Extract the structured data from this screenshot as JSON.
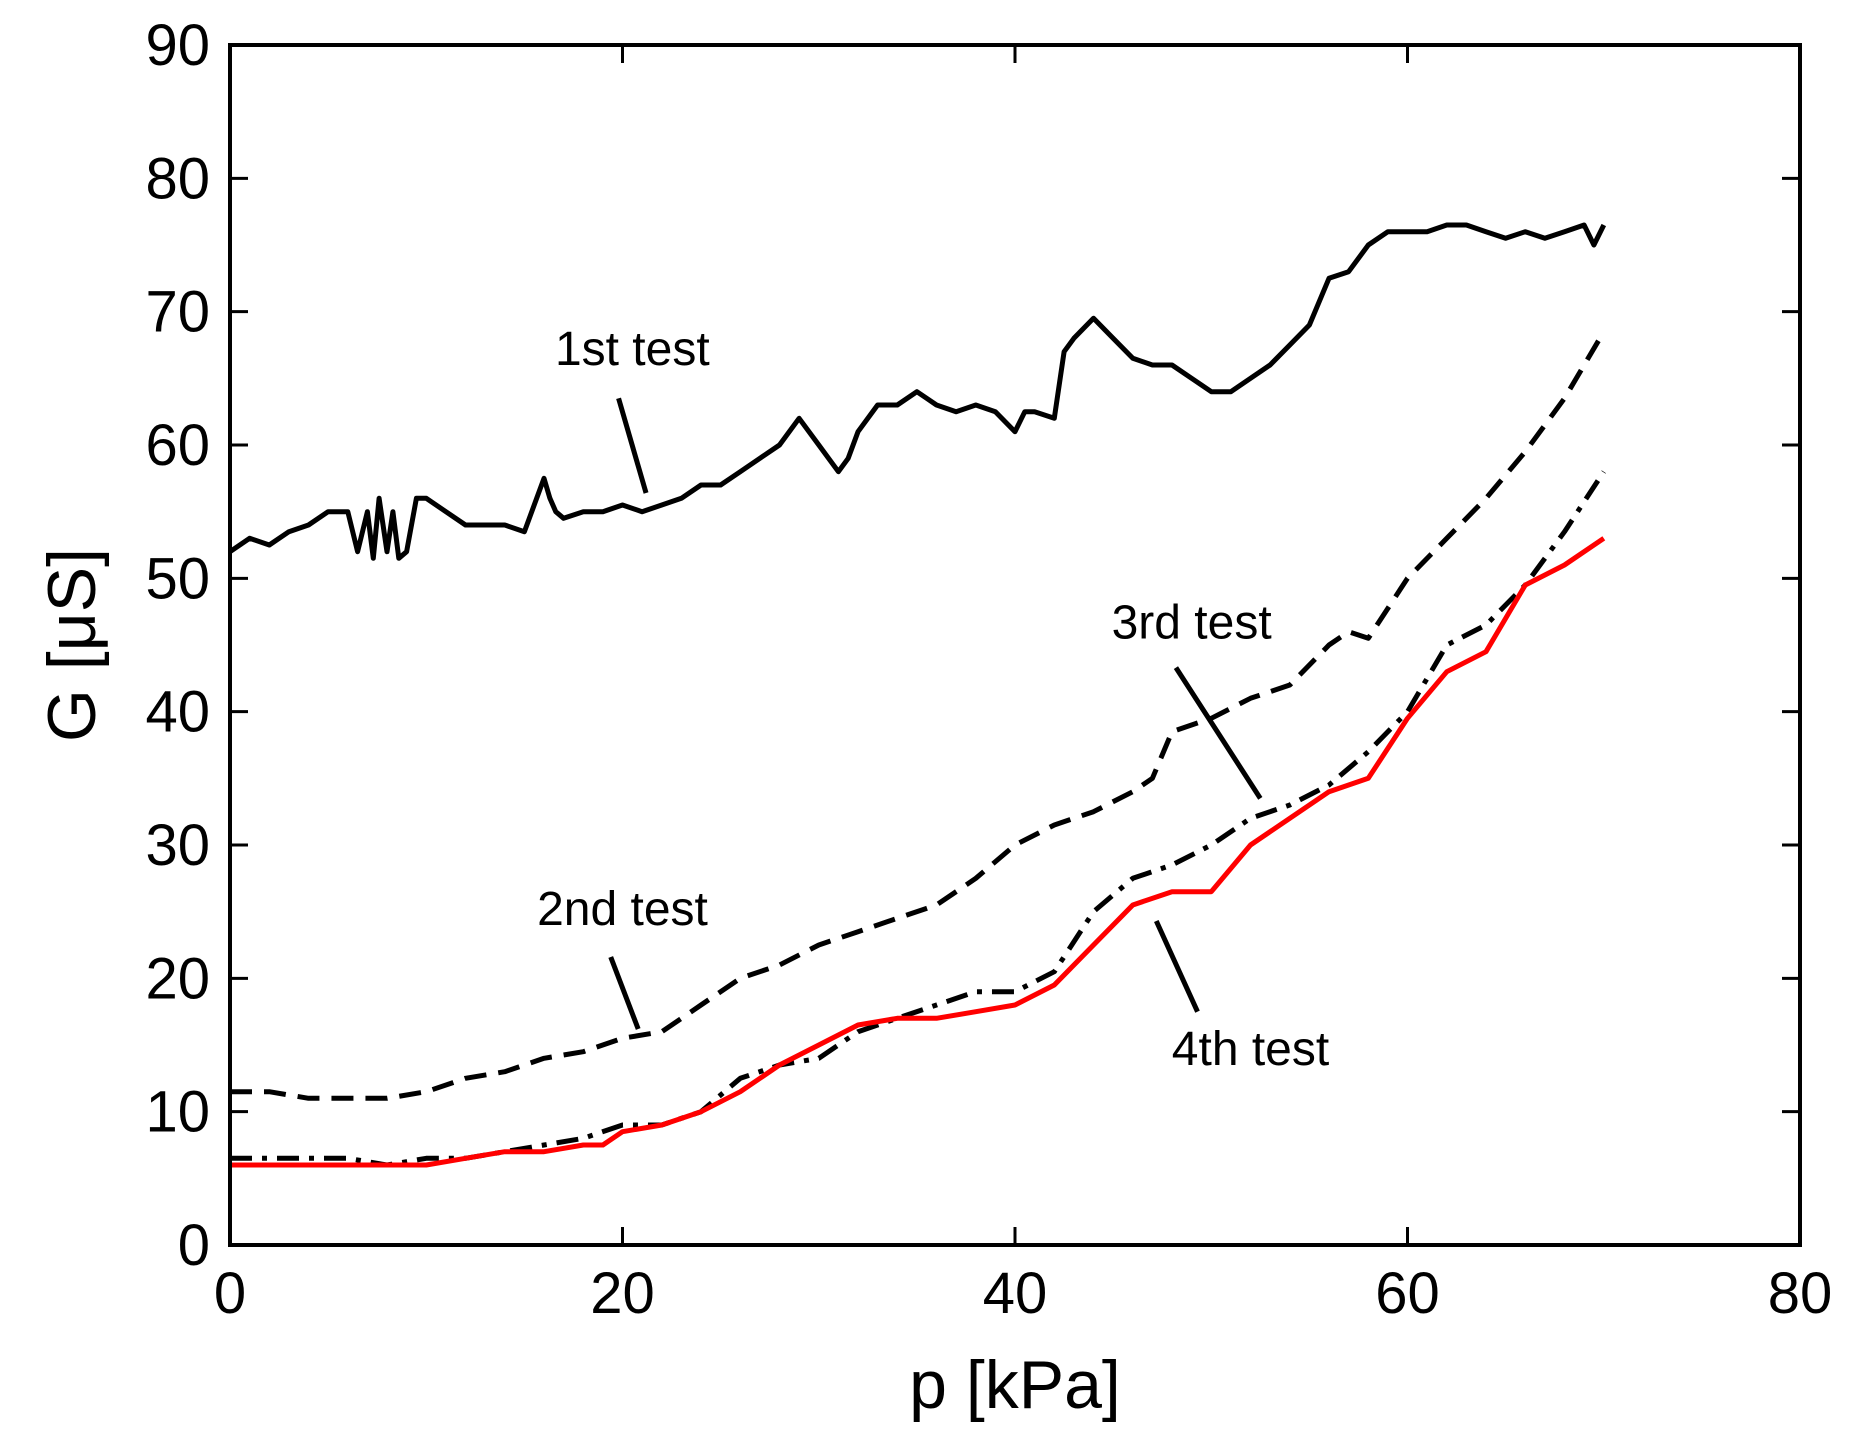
{
  "chart_data": {
    "type": "line",
    "title": "",
    "xlabel": "p [kPa]",
    "ylabel": "G [μS]",
    "xlim": [
      0,
      80
    ],
    "ylim": [
      0,
      90
    ],
    "xticks": [
      0,
      20,
      40,
      60,
      80
    ],
    "yticks": [
      0,
      10,
      20,
      30,
      40,
      50,
      60,
      70,
      80,
      90
    ],
    "grid": false,
    "legend": "none",
    "series": [
      {
        "name": "1st test",
        "color": "#000000",
        "style": "solid",
        "x": [
          0,
          1,
          2,
          3,
          4,
          5,
          6,
          6.5,
          7,
          7.3,
          7.6,
          8,
          8.3,
          8.6,
          9,
          9.5,
          10,
          11,
          12,
          13,
          14,
          15,
          16,
          16.3,
          16.6,
          17,
          18,
          19,
          20,
          21,
          22,
          23,
          24,
          25,
          26,
          27,
          28,
          29,
          30,
          31,
          31.5,
          32,
          33,
          34,
          35,
          35.5,
          36,
          37,
          38,
          39,
          40,
          40.5,
          41,
          42,
          42.5,
          43,
          44,
          45,
          46,
          47,
          48,
          49,
          50,
          51,
          52,
          53,
          54,
          55,
          56,
          57,
          58,
          59,
          60,
          61,
          62,
          63,
          64,
          65,
          66,
          67,
          68,
          69,
          69.5,
          70
        ],
        "y": [
          52,
          53,
          52.5,
          53.5,
          54,
          55,
          55,
          52,
          55,
          51.5,
          56,
          52,
          55,
          51.5,
          52,
          56,
          56,
          55,
          54,
          54,
          54,
          53.5,
          57.5,
          56,
          55,
          54.5,
          55,
          55,
          55.5,
          55,
          55.5,
          56,
          57,
          57,
          58,
          59,
          60,
          62,
          60,
          58,
          59,
          61,
          63,
          63,
          64,
          63.5,
          63,
          62.5,
          63,
          62.5,
          61,
          62.5,
          62.5,
          62,
          67,
          68,
          69.5,
          68,
          66.5,
          66,
          66,
          65,
          64,
          64,
          65,
          66,
          67.5,
          69,
          72.5,
          73,
          75,
          76,
          76,
          76,
          76.5,
          76.5,
          76,
          75.5,
          76,
          75.5,
          76,
          76.5,
          75,
          76.5
        ]
      },
      {
        "name": "2nd test",
        "color": "#000000",
        "style": "dashed",
        "x": [
          0,
          2,
          4,
          6,
          8,
          10,
          12,
          14,
          16,
          18,
          20,
          22,
          24,
          26,
          28,
          30,
          32,
          34,
          36,
          38,
          40,
          42,
          44,
          46,
          47,
          48,
          50,
          52,
          54,
          56,
          57,
          58,
          60,
          62,
          64,
          66,
          68,
          70
        ],
        "y": [
          11.5,
          11.5,
          11,
          11,
          11,
          11.5,
          12.5,
          13,
          14,
          14.5,
          15.5,
          16,
          18,
          20,
          21,
          22.5,
          23.5,
          24.5,
          25.5,
          27.5,
          30,
          31.5,
          32.5,
          34,
          35,
          38.5,
          39.5,
          41,
          42,
          45,
          46,
          45.5,
          50,
          53,
          56,
          59.5,
          63.5,
          68.5
        ]
      },
      {
        "name": "3rd test",
        "color": "#000000",
        "style": "dashdot",
        "x": [
          0,
          2,
          4,
          6,
          8,
          10,
          12,
          14,
          16,
          18,
          20,
          22,
          24,
          26,
          28,
          30,
          32,
          34,
          36,
          38,
          40,
          42,
          44,
          46,
          48,
          50,
          52,
          54,
          56,
          58,
          60,
          62,
          64,
          66,
          68,
          70
        ],
        "y": [
          6.5,
          6.5,
          6.5,
          6.5,
          6,
          6.5,
          6.5,
          7,
          7.5,
          8,
          9,
          9,
          10,
          12.5,
          13.5,
          14,
          16,
          17,
          18,
          19,
          19,
          20.5,
          25,
          27.5,
          28.5,
          30,
          32,
          33,
          34.5,
          37,
          40,
          45,
          46.5,
          49.5,
          53.5,
          58
        ]
      },
      {
        "name": "4th test",
        "color": "#ff0000",
        "style": "solid",
        "x": [
          0,
          2,
          4,
          6,
          8,
          10,
          12,
          14,
          16,
          18,
          19,
          20,
          22,
          24,
          26,
          28,
          30,
          32,
          34,
          36,
          38,
          40,
          42,
          44,
          46,
          48,
          50,
          52,
          54,
          56,
          58,
          60,
          62,
          64,
          66,
          68,
          70
        ],
        "y": [
          6,
          6,
          6,
          6,
          6,
          6,
          6.5,
          7,
          7,
          7.5,
          7.5,
          8.5,
          9,
          10,
          11.5,
          13.5,
          15,
          16.5,
          17,
          17,
          17.5,
          18,
          19.5,
          22.5,
          25.5,
          26.5,
          26.5,
          30,
          32,
          34,
          35,
          39.5,
          43,
          44.5,
          49.5,
          51,
          53
        ]
      }
    ],
    "annotations": [
      {
        "text": "1st test",
        "x": 20.5,
        "y": 66,
        "line": [
          [
            19.8,
            63.5
          ],
          [
            21.2,
            56.4
          ]
        ]
      },
      {
        "text": "2nd test",
        "x": 20,
        "y": 24,
        "line": [
          [
            19.4,
            21.6
          ],
          [
            20.8,
            16.2
          ]
        ]
      },
      {
        "text": "3rd test",
        "x": 49,
        "y": 45.5,
        "line": [
          [
            48.2,
            43.3
          ],
          [
            52.5,
            33.5
          ]
        ]
      },
      {
        "text": "4th test",
        "x": 52,
        "y": 13.5,
        "line": [
          [
            47.2,
            24.3
          ],
          [
            49.3,
            17.5
          ]
        ]
      }
    ]
  }
}
